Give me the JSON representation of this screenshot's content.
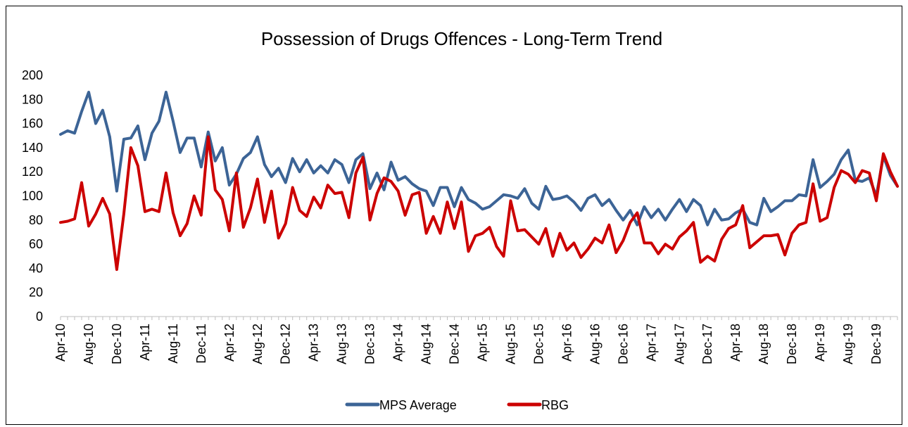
{
  "chart_data": {
    "type": "line",
    "title": "Possession of Drugs Offences - Long-Term Trend",
    "xlabel": "",
    "ylabel": "",
    "ylim": [
      0,
      200
    ],
    "yticks": [
      0,
      20,
      40,
      60,
      80,
      100,
      120,
      140,
      160,
      180,
      200
    ],
    "grid": false,
    "legend_position": "bottom",
    "x": [
      "Apr-10",
      "May-10",
      "Jun-10",
      "Jul-10",
      "Aug-10",
      "Sep-10",
      "Oct-10",
      "Nov-10",
      "Dec-10",
      "Jan-11",
      "Feb-11",
      "Mar-11",
      "Apr-11",
      "May-11",
      "Jun-11",
      "Jul-11",
      "Aug-11",
      "Sep-11",
      "Oct-11",
      "Nov-11",
      "Dec-11",
      "Jan-12",
      "Feb-12",
      "Mar-12",
      "Apr-12",
      "May-12",
      "Jun-12",
      "Jul-12",
      "Aug-12",
      "Sep-12",
      "Oct-12",
      "Nov-12",
      "Dec-12",
      "Jan-13",
      "Feb-13",
      "Mar-13",
      "Apr-13",
      "May-13",
      "Jun-13",
      "Jul-13",
      "Aug-13",
      "Sep-13",
      "Oct-13",
      "Nov-13",
      "Dec-13",
      "Jan-14",
      "Feb-14",
      "Mar-14",
      "Apr-14",
      "May-14",
      "Jun-14",
      "Jul-14",
      "Aug-14",
      "Sep-14",
      "Oct-14",
      "Nov-14",
      "Dec-14",
      "Jan-15",
      "Feb-15",
      "Mar-15",
      "Apr-15",
      "May-15",
      "Jun-15",
      "Jul-15",
      "Aug-15",
      "Sep-15",
      "Oct-15",
      "Nov-15",
      "Dec-15",
      "Jan-16",
      "Feb-16",
      "Mar-16",
      "Apr-16",
      "May-16",
      "Jun-16",
      "Jul-16",
      "Aug-16",
      "Sep-16",
      "Oct-16",
      "Nov-16",
      "Dec-16",
      "Jan-17",
      "Feb-17",
      "Mar-17",
      "Apr-17",
      "May-17",
      "Jun-17",
      "Jul-17",
      "Aug-17",
      "Sep-17",
      "Oct-17",
      "Nov-17",
      "Dec-17",
      "Jan-18",
      "Feb-18",
      "Mar-18",
      "Apr-18",
      "May-18",
      "Jun-18",
      "Jul-18",
      "Aug-18",
      "Sep-18",
      "Oct-18",
      "Nov-18",
      "Dec-18",
      "Jan-19",
      "Feb-19",
      "Mar-19",
      "Apr-19",
      "May-19",
      "Jun-19",
      "Jul-19",
      "Aug-19",
      "Sep-19",
      "Oct-19",
      "Nov-19",
      "Dec-19",
      "Jan-20",
      "Feb-20",
      "Mar-20"
    ],
    "xtick_labels": [
      "Apr-10",
      "Aug-10",
      "Dec-10",
      "Apr-11",
      "Aug-11",
      "Dec-11",
      "Apr-12",
      "Aug-12",
      "Dec-12",
      "Apr-13",
      "Aug-13",
      "Dec-13",
      "Apr-14",
      "Aug-14",
      "Dec-14",
      "Apr-15",
      "Aug-15",
      "Dec-15",
      "Apr-16",
      "Aug-16",
      "Dec-16",
      "Apr-17",
      "Aug-17",
      "Dec-17",
      "Apr-18",
      "Aug-18",
      "Dec-18",
      "Apr-19",
      "Aug-19",
      "Dec-19"
    ],
    "series": [
      {
        "name": "MPS Average",
        "color": "#3C6496",
        "values": [
          151,
          154,
          152,
          170,
          186,
          160,
          171,
          149,
          104,
          147,
          148,
          158,
          130,
          152,
          162,
          186,
          162,
          136,
          148,
          148,
          124,
          153,
          129,
          140,
          109,
          118,
          131,
          136,
          149,
          126,
          116,
          123,
          111,
          131,
          120,
          130,
          119,
          125,
          119,
          130,
          126,
          111,
          130,
          135,
          106,
          119,
          105,
          128,
          113,
          116,
          110,
          106,
          104,
          92,
          107,
          107,
          91,
          107,
          97,
          94,
          89,
          91,
          96,
          101,
          100,
          98,
          106,
          94,
          89,
          108,
          97,
          98,
          100,
          95,
          88,
          98,
          101,
          92,
          97,
          88,
          80,
          88,
          76,
          91,
          82,
          89,
          80,
          89,
          97,
          87,
          97,
          92,
          76,
          89,
          80,
          81,
          86,
          89,
          78,
          76,
          98,
          87,
          91,
          96,
          96,
          101,
          100,
          130,
          107,
          112,
          118,
          130,
          138,
          113,
          112,
          115,
          100,
          133,
          117,
          108
        ]
      },
      {
        "name": "RBG",
        "color": "#CC0000",
        "values": [
          78,
          79,
          81,
          111,
          75,
          85,
          98,
          85,
          39,
          85,
          140,
          125,
          87,
          89,
          87,
          119,
          86,
          67,
          77,
          100,
          84,
          149,
          105,
          97,
          71,
          119,
          74,
          90,
          114,
          78,
          104,
          65,
          77,
          107,
          88,
          83,
          99,
          90,
          109,
          102,
          103,
          82,
          119,
          132,
          80,
          102,
          115,
          112,
          104,
          84,
          101,
          103,
          69,
          83,
          69,
          95,
          73,
          95,
          54,
          67,
          69,
          74,
          58,
          50,
          96,
          71,
          72,
          66,
          60,
          73,
          50,
          69,
          55,
          61,
          49,
          56,
          65,
          61,
          76,
          53,
          63,
          78,
          86,
          61,
          61,
          52,
          60,
          56,
          66,
          71,
          78,
          45,
          50,
          46,
          64,
          73,
          76,
          92,
          57,
          62,
          67,
          67,
          68,
          51,
          69,
          76,
          78,
          110,
          79,
          82,
          107,
          121,
          118,
          111,
          121,
          119,
          96,
          135,
          120,
          108
        ]
      }
    ]
  }
}
